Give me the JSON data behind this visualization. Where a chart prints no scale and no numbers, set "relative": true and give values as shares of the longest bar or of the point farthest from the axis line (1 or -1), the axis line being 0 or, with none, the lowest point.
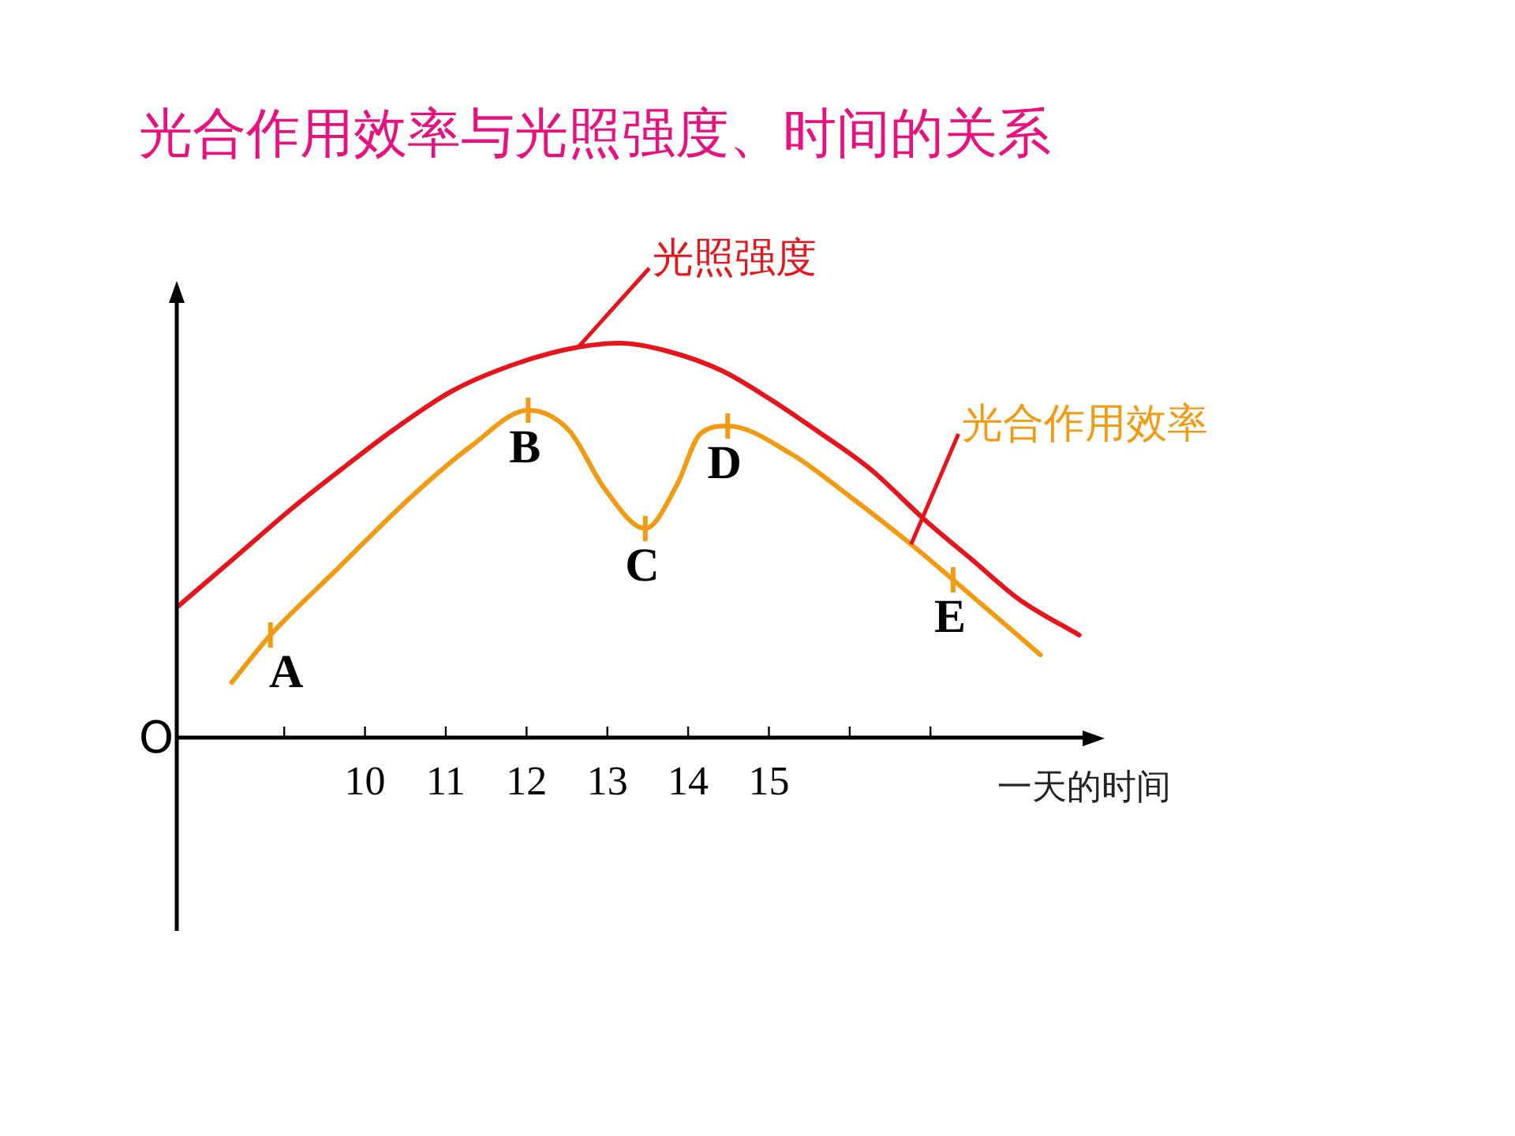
{
  "chart_data": {
    "type": "line",
    "title": "光合作用效率与光照强度、时间的关系",
    "xlabel": "一天的时间",
    "relative": true,
    "xlim": [
      7.67,
      19
    ],
    "xticks": [
      {
        "value": 9,
        "label": null
      },
      10,
      11,
      12,
      13,
      14,
      15,
      {
        "value": 16,
        "label": null
      },
      {
        "value": 17,
        "label": null
      }
    ],
    "grid": false,
    "legend": false,
    "tick_labels": "x",
    "marker": "none",
    "line_style": "solid",
    "series": [
      {
        "name": "光照强度",
        "color": "#e8141c",
        "x": [
          7.67,
          8.41,
          9.09,
          9.77,
          10.35,
          11.09,
          11.9,
          12.64,
          13.16,
          13.74,
          14.42,
          15.0,
          15.58,
          16.26,
          16.94,
          17.52,
          18.1,
          18.84
        ],
        "values": [
          0.33,
          0.46,
          0.58,
          0.69,
          0.78,
          0.88,
          0.95,
          0.99,
          1.0,
          0.98,
          0.93,
          0.86,
          0.78,
          0.68,
          0.55,
          0.45,
          0.35,
          0.26
        ]
      },
      {
        "name": "光合作用效率",
        "color": "#f29b12",
        "x": [
          8.35,
          8.83,
          9.67,
          10.57,
          11.32,
          12.02,
          12.52,
          12.97,
          13.47,
          13.86,
          14.15,
          14.49,
          15.27,
          16.01,
          16.76,
          17.28,
          18.36
        ],
        "values": [
          0.14,
          0.26,
          0.43,
          0.61,
          0.74,
          0.83,
          0.78,
          0.63,
          0.53,
          0.64,
          0.77,
          0.79,
          0.72,
          0.61,
          0.49,
          0.4,
          0.21
        ]
      }
    ],
    "annotations": [
      "O",
      {
        "text": "A",
        "x": 8.83,
        "y": 0.26
      },
      {
        "text": "B",
        "x": 12.02,
        "y": 0.83
      },
      {
        "text": "C",
        "x": 13.47,
        "y": 0.53
      },
      {
        "text": "D",
        "x": 14.49,
        "y": 0.79
      },
      {
        "text": "E",
        "x": 17.28,
        "y": 0.4
      }
    ]
  }
}
